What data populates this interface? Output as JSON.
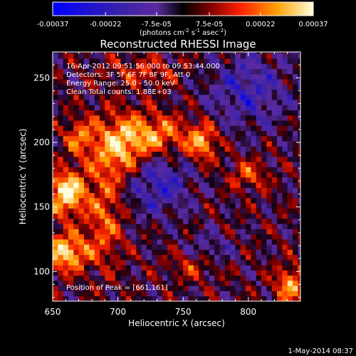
{
  "colorbar": {
    "ticks": [
      "-0.00037",
      "-0.00022",
      "-7.5e-05",
      "7.5e-05",
      "0.00022",
      "0.00037"
    ],
    "tick_values": [
      -0.00037,
      -0.00022,
      -7.5e-05,
      7.5e-05,
      0.00022,
      0.00037
    ],
    "range": [
      -0.00037,
      0.00037
    ],
    "unit_prefix": "(photons cm",
    "unit_sup1": "-2",
    "unit_mid": " s",
    "unit_sup2": "-1",
    "unit_suffix": " asec",
    "unit_sup3": "-2",
    "unit_close": ")",
    "colors": [
      "#0000ff",
      "#3a22a8",
      "#5a2aa0",
      "#000000",
      "#7a0000",
      "#ff2000",
      "#ffa000",
      "#ffffe0"
    ]
  },
  "chart_data": {
    "type": "heatmap",
    "title": "Reconstructed RHESSI Image",
    "xlabel": "Heliocentric X (arcsec)",
    "ylabel": "Heliocentric Y (arcsec)",
    "xlim": [
      650,
      840
    ],
    "ylim": [
      77,
      270
    ],
    "x_ticks": [
      650,
      700,
      750,
      800
    ],
    "y_ticks": [
      100,
      150,
      200,
      250
    ],
    "peak": [
      661,
      161
    ],
    "annotations": [
      "16-Apr-2012 09:51:56.000 to 09:53:44.000",
      "Detectors: 3F 5F 6F 7F 8F 9F, Att 0",
      "Energy Range: 25.0 - 50.0 keV",
      "Clean   Total counts: 1.88E+03",
      "Position of Peak = [661,161]"
    ]
  },
  "footer": {
    "date": "1-May-2014 08:37"
  }
}
